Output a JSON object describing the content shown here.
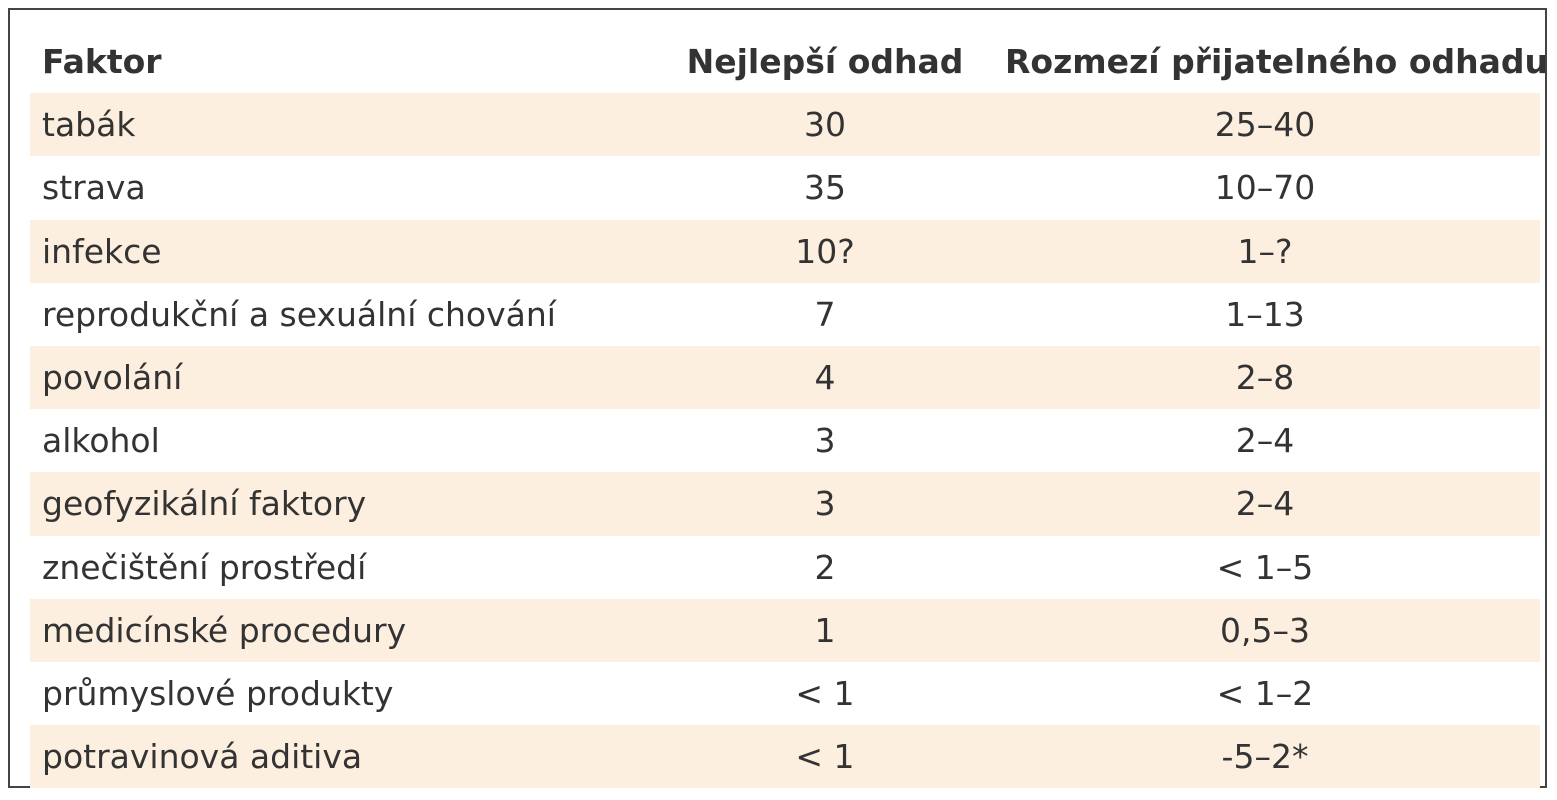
{
  "table": {
    "header": [
      "Faktor",
      "Nejlepší odhad",
      "Rozmezí přijatelného odhadu"
    ],
    "rows": [
      [
        "tabák",
        "30",
        "25–40"
      ],
      [
        "strava",
        "35",
        "10–70"
      ],
      [
        "infekce",
        "10?",
        "1–?"
      ],
      [
        "reprodukční a sexuální chování",
        "7",
        "1–13"
      ],
      [
        "povolání",
        "4",
        "2–8"
      ],
      [
        "alkohol",
        "3",
        "2–4"
      ],
      [
        "geofyzikální faktory",
        "3",
        "2–4"
      ],
      [
        "znečištění prostředí",
        "2",
        "< 1–5"
      ],
      [
        "medicínské procedury",
        "1",
        "0,5–3"
      ],
      [
        "průmyslové produkty",
        "< 1",
        "< 1–2"
      ],
      [
        "potravinová aditiva",
        "< 1",
        "-5–2*"
      ]
    ]
  }
}
